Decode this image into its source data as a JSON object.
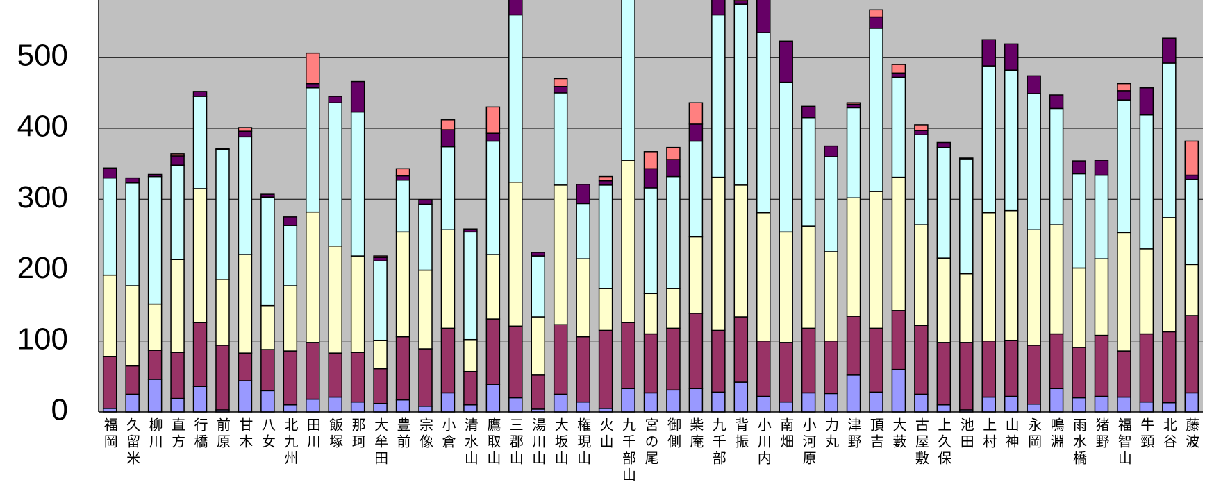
{
  "chart_data": {
    "type": "stacked_bar",
    "categories": [
      "福岡",
      "久留米",
      "柳川",
      "直方",
      "行橋",
      "前原",
      "甘木",
      "八女",
      "北九州",
      "田川",
      "飯塚",
      "那珂",
      "大牟田",
      "豊前",
      "宗像",
      "小倉",
      "清水山",
      "鷹取山",
      "三郡山",
      "湯川山",
      "大坂山",
      "権現山",
      "火山",
      "九千部山",
      "宮の尾",
      "御側",
      "柴庵",
      "九千部",
      "背振",
      "小川内",
      "南畑",
      "小河原",
      "力丸",
      "津野",
      "頂吉",
      "大藪",
      "古屋敷",
      "上久保",
      "池田",
      "上村",
      "山神",
      "永岡",
      "鳴淵",
      "雨水橋",
      "猪野",
      "福智山",
      "牛頸",
      "北谷",
      "藤波"
    ],
    "series": [
      {
        "color": "#9999ff",
        "values": [
          5,
          25,
          46,
          19,
          36,
          3,
          44,
          30,
          10,
          18,
          21,
          14,
          12,
          17,
          8,
          27,
          10,
          39,
          20,
          4,
          25,
          14,
          5,
          33,
          27,
          31,
          33,
          28,
          42,
          22,
          14,
          27,
          26,
          52,
          28,
          60,
          25,
          10,
          3,
          21,
          22,
          11,
          33,
          20,
          22,
          21,
          14,
          13,
          27
        ]
      },
      {
        "color": "#993366",
        "values": [
          73,
          40,
          41,
          65,
          90,
          91,
          39,
          58,
          76,
          80,
          62,
          70,
          49,
          89,
          81,
          91,
          47,
          92,
          101,
          48,
          98,
          92,
          110,
          93,
          83,
          87,
          106,
          87,
          92,
          78,
          84,
          91,
          74,
          83,
          90,
          83,
          97,
          88,
          95,
          79,
          79,
          83,
          77,
          71,
          86,
          65,
          96,
          100,
          109
        ]
      },
      {
        "color": "#ffffcc",
        "values": [
          115,
          113,
          65,
          131,
          189,
          93,
          139,
          62,
          92,
          184,
          151,
          136,
          40,
          148,
          111,
          139,
          45,
          91,
          203,
          82,
          197,
          110,
          59,
          229,
          57,
          56,
          108,
          216,
          186,
          181,
          156,
          144,
          126,
          167,
          193,
          188,
          142,
          119,
          97,
          181,
          183,
          163,
          154,
          112,
          108,
          167,
          120,
          161,
          72
        ]
      },
      {
        "color": "#ccffff",
        "values": [
          137,
          145,
          180,
          133,
          130,
          183,
          166,
          153,
          85,
          175,
          202,
          203,
          112,
          73,
          93,
          117,
          152,
          160,
          236,
          86,
          130,
          78,
          146,
          235,
          149,
          158,
          135,
          229,
          255,
          254,
          211,
          153,
          134,
          127,
          230,
          141,
          127,
          156,
          162,
          207,
          198,
          192,
          164,
          133,
          118,
          187,
          189,
          218,
          120
        ]
      },
      {
        "color": "#660066",
        "values": [
          14,
          7,
          3,
          13,
          7,
          1,
          8,
          4,
          12,
          6,
          9,
          43,
          5,
          6,
          6,
          24,
          4,
          11,
          40,
          5,
          9,
          27,
          6,
          0,
          27,
          24,
          24,
          30,
          5,
          50,
          58,
          16,
          15,
          5,
          16,
          6,
          6,
          7,
          1,
          37,
          37,
          25,
          19,
          18,
          21,
          13,
          38,
          35,
          6
        ]
      },
      {
        "color": "#ff8080",
        "values": [
          0,
          0,
          0,
          3,
          0,
          0,
          5,
          0,
          0,
          43,
          0,
          0,
          2,
          10,
          0,
          14,
          0,
          37,
          0,
          0,
          11,
          0,
          6,
          0,
          24,
          17,
          30,
          0,
          5,
          0,
          0,
          0,
          0,
          2,
          10,
          12,
          8,
          0,
          0,
          0,
          0,
          0,
          0,
          0,
          0,
          10,
          0,
          0,
          48
        ]
      }
    ],
    "ylim": [
      0,
      581
    ],
    "yticks": [
      0,
      100,
      200,
      300,
      400,
      500
    ],
    "grid": true,
    "plot_background": "#c0c0c0"
  }
}
